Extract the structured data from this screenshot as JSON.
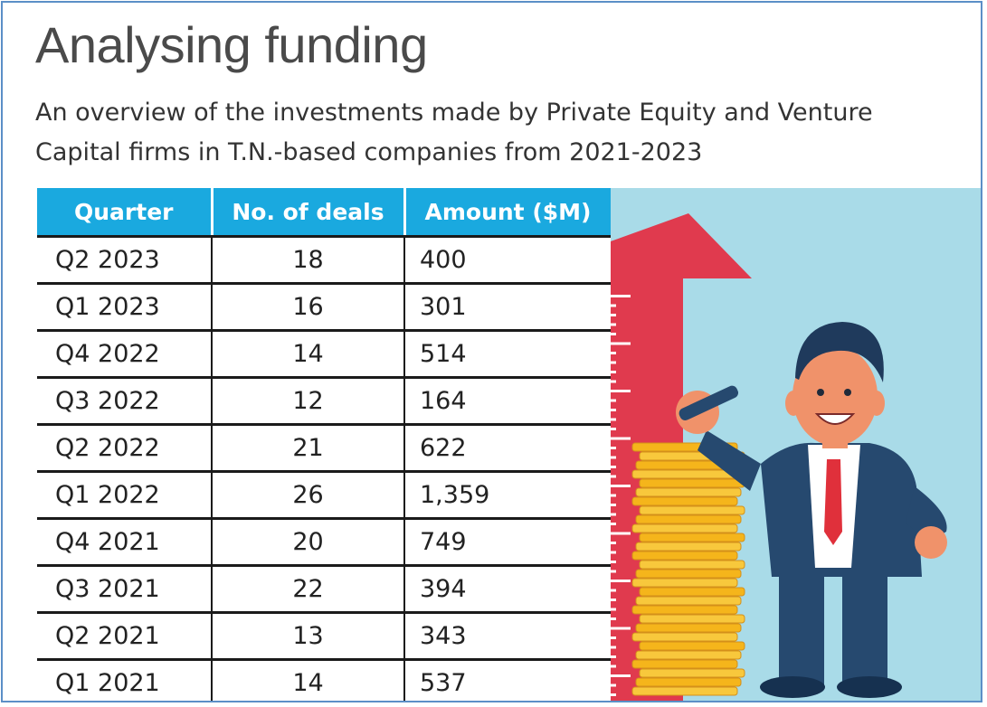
{
  "header": {
    "title": "Analysing funding",
    "subtitle": "An overview of the investments made by Private Equity and Venture Capital firms in T.N.-based companies from 2021-2023"
  },
  "colors": {
    "header_blue": "#1aa9df",
    "illustration_bg": "#a9dbe8",
    "arrow_red": "#e03a4e",
    "coin_gold": "#f5b51b",
    "suit_navy": "#26496f"
  },
  "chart_data": {
    "type": "table",
    "columns": [
      "Quarter",
      "No. of deals",
      "Amount ($M)"
    ],
    "rows": [
      [
        "Q2 2023",
        "18",
        "400"
      ],
      [
        "Q1 2023",
        "16",
        "301"
      ],
      [
        "Q4 2022",
        "14",
        "514"
      ],
      [
        "Q3 2022",
        "12",
        "164"
      ],
      [
        "Q2 2022",
        "21",
        "622"
      ],
      [
        "Q1 2022",
        "26",
        "1,359"
      ],
      [
        "Q4 2021",
        "20",
        "749"
      ],
      [
        "Q3 2021",
        "22",
        "394"
      ],
      [
        "Q2 2021",
        "13",
        "343"
      ],
      [
        "Q1 2021",
        "14",
        "537"
      ]
    ]
  }
}
